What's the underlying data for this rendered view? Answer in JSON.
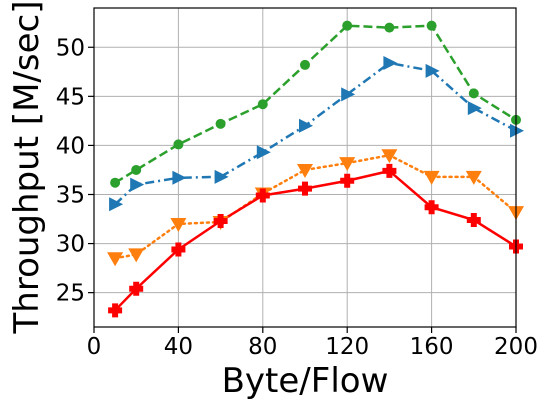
{
  "chart_data": {
    "type": "line",
    "xlabel": "Byte/Flow",
    "ylabel": "Throughput [M/sec]",
    "xlim": [
      0,
      200
    ],
    "ylim": [
      21.5,
      54
    ],
    "xticks": [
      0,
      40,
      80,
      120,
      160,
      200
    ],
    "yticks": [
      25,
      30,
      35,
      40,
      45,
      50
    ],
    "x": [
      10,
      20,
      40,
      60,
      80,
      100,
      120,
      140,
      160,
      180,
      200
    ],
    "grid": true,
    "series": [
      {
        "color": "#2ca02c",
        "linestyle": "dashed",
        "marker": "circle",
        "values": [
          36.2,
          37.5,
          40.1,
          42.2,
          44.2,
          48.2,
          52.2,
          52.0,
          52.2,
          45.3,
          42.6
        ]
      },
      {
        "color": "#1f77b4",
        "linestyle": "dashdot",
        "marker": "triangle-right",
        "values": [
          34.0,
          36.0,
          36.7,
          36.8,
          39.3,
          42.0,
          45.2,
          48.4,
          47.6,
          43.8,
          41.5
        ]
      },
      {
        "color": "#ff7f0e",
        "linestyle": "dotted",
        "marker": "triangle-down",
        "values": [
          28.5,
          28.9,
          32.0,
          32.2,
          35.1,
          37.5,
          38.2,
          39.0,
          36.8,
          36.8,
          33.2
        ]
      },
      {
        "color": "#ff0000",
        "linestyle": "solid",
        "marker": "plus-filled",
        "values": [
          23.2,
          25.4,
          29.4,
          32.3,
          34.9,
          35.6,
          36.4,
          37.4,
          33.7,
          32.4,
          29.7
        ]
      }
    ]
  }
}
